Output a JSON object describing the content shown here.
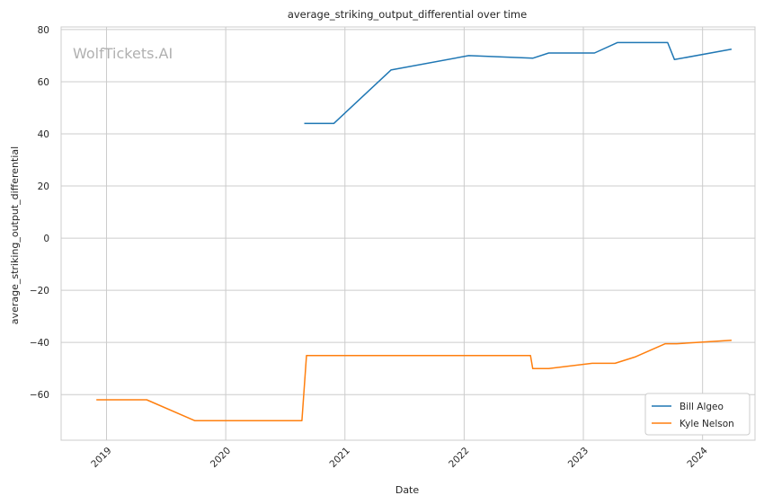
{
  "chart_data": {
    "type": "line",
    "title": "average_striking_output_differential over time",
    "xlabel": "Date",
    "ylabel": "average_striking_output_differential",
    "watermark": "WolfTickets.AI",
    "x_ticks": [
      "2019",
      "2020",
      "2021",
      "2022",
      "2023",
      "2024"
    ],
    "y_ticks": [
      "−60",
      "−40",
      "−20",
      "0",
      "20",
      "40",
      "60",
      "80"
    ],
    "xlim": [
      "2018-08-15",
      "2024-06-10"
    ],
    "ylim": [
      -77.5,
      81
    ],
    "grid": true,
    "legend_position": "bottom-right",
    "series": [
      {
        "name": "Bill Algeo",
        "color": "#1f77b4",
        "points": [
          [
            "2020-08-29",
            44.0
          ],
          [
            "2020-11-28",
            44.0
          ],
          [
            "2021-05-22",
            64.5
          ],
          [
            "2022-01-15",
            70.0
          ],
          [
            "2022-07-30",
            69.0
          ],
          [
            "2022-09-17",
            71.0
          ],
          [
            "2023-02-04",
            71.0
          ],
          [
            "2023-04-15",
            75.0
          ],
          [
            "2023-09-16",
            75.0
          ],
          [
            "2023-10-07",
            68.5
          ],
          [
            "2024-03-30",
            72.5
          ]
        ]
      },
      {
        "name": "Kyle Nelson",
        "color": "#ff7f0e",
        "points": [
          [
            "2018-12-01",
            -62.0
          ],
          [
            "2019-05-04",
            -62.0
          ],
          [
            "2019-09-28",
            -70.0
          ],
          [
            "2020-08-22",
            -70.0
          ],
          [
            "2020-09-05",
            -45.0
          ],
          [
            "2022-07-23",
            -45.0
          ],
          [
            "2022-07-30",
            -50.0
          ],
          [
            "2022-09-17",
            -50.0
          ],
          [
            "2023-01-28",
            -48.0
          ],
          [
            "2023-04-08",
            -48.0
          ],
          [
            "2023-06-10",
            -45.5
          ],
          [
            "2023-09-09",
            -40.5
          ],
          [
            "2023-10-14",
            -40.5
          ],
          [
            "2024-03-30",
            -39.2
          ]
        ]
      }
    ]
  }
}
